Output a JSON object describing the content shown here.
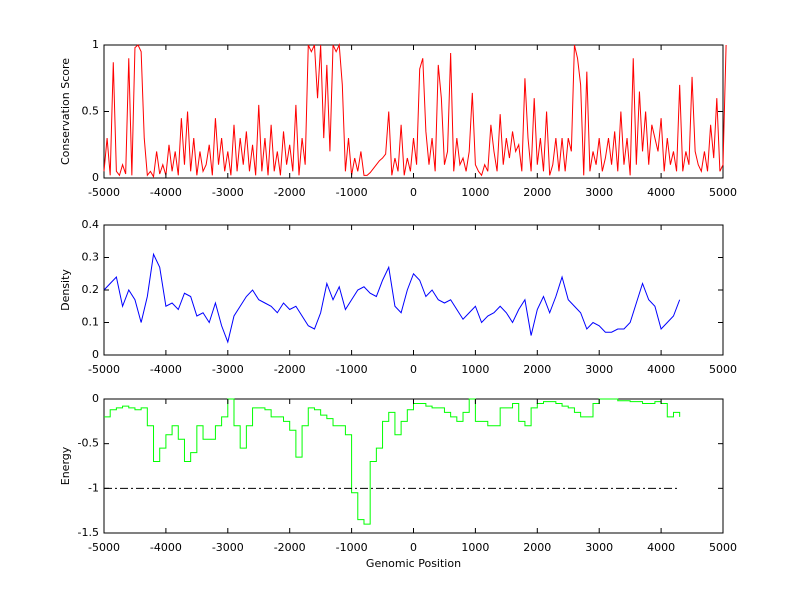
{
  "chart_data": [
    {
      "type": "line",
      "ylabel": "Conservation Score",
      "xlim": [
        -5000,
        5000
      ],
      "ylim": [
        0,
        1
      ],
      "xticks": [
        -5000,
        -4000,
        -3000,
        -2000,
        -1000,
        0,
        1000,
        2000,
        3000,
        4000,
        5000
      ],
      "yticks": [
        0,
        0.5,
        1
      ],
      "ytick_labels": [
        "0",
        "0.5",
        "1"
      ],
      "color": "#ff0000",
      "grid": false,
      "x_start": -5000,
      "x_step": 50,
      "values": [
        0.05,
        0.3,
        0.02,
        0.87,
        0.05,
        0.02,
        0.1,
        0.03,
        0.9,
        0.02,
        0.98,
        1,
        0.95,
        0.3,
        0.02,
        0.05,
        0.01,
        0.2,
        0.03,
        0.1,
        0.02,
        0.25,
        0.05,
        0.2,
        0.02,
        0.45,
        0.1,
        0.5,
        0.05,
        0.3,
        0.02,
        0.2,
        0.05,
        0.1,
        0.25,
        0.02,
        0.45,
        0.1,
        0.3,
        0.05,
        0.2,
        0.02,
        0.4,
        0.05,
        0.3,
        0.1,
        0.35,
        0.05,
        0.25,
        0.02,
        0.55,
        0.05,
        0.3,
        0.02,
        0.4,
        0.05,
        0.2,
        0.02,
        0.35,
        0.1,
        0.25,
        0.05,
        0.55,
        0.02,
        0.3,
        0.1,
        1,
        0.95,
        1,
        0.6,
        1,
        0.3,
        0.85,
        0.2,
        1,
        0.95,
        1,
        0.7,
        0.05,
        0.3,
        0.02,
        0.15,
        0.05,
        0.2,
        0.02,
        0.02,
        0.04,
        0.07,
        0.1,
        0.13,
        0.15,
        0.18,
        0.5,
        0.02,
        0.15,
        0.05,
        0.4,
        0.02,
        0.15,
        0.05,
        0.3,
        0.1,
        0.82,
        0.9,
        0.35,
        0.1,
        0.3,
        0.05,
        0.85,
        0.6,
        0.1,
        0.2,
        0.94,
        0.05,
        0.3,
        0.1,
        0.15,
        0.05,
        0.2,
        0.64,
        0.1,
        0.05,
        0.02,
        0.1,
        0.05,
        0.4,
        0.2,
        0.05,
        0.48,
        0.1,
        0.3,
        0.15,
        0.35,
        0.2,
        0.25,
        0.05,
        0.75,
        0.3,
        0.05,
        0.6,
        0.1,
        0.3,
        0.05,
        0.5,
        0.02,
        0.1,
        0.3,
        0.05,
        0.3,
        0.05,
        0.3,
        0.2,
        1,
        0.9,
        0.7,
        0.02,
        0.8,
        0.05,
        0.2,
        0.1,
        0.3,
        0.05,
        0.15,
        0.3,
        0.1,
        0.35,
        0.05,
        0.5,
        0.1,
        0.3,
        0.02,
        0.9,
        0.1,
        0.65,
        0.2,
        0.5,
        0.1,
        0.4,
        0.3,
        0.2,
        0.45,
        0.05,
        0.3,
        0.1,
        0.2,
        0.05,
        0.7,
        0.05,
        0.2,
        0.1,
        0.76,
        0.2,
        0.1,
        0.05,
        0.2,
        0.05,
        0.4,
        0.15,
        0.6,
        0.05,
        0.1,
        1
      ]
    },
    {
      "type": "line",
      "ylabel": "Density",
      "xlim": [
        -5000,
        5000
      ],
      "ylim": [
        0,
        0.4
      ],
      "xticks": [
        -5000,
        -4000,
        -3000,
        -2000,
        -1000,
        0,
        1000,
        2000,
        3000,
        4000,
        5000
      ],
      "yticks": [
        0,
        0.1,
        0.2,
        0.3,
        0.4
      ],
      "ytick_labels": [
        "0",
        "0.1",
        "0.2",
        "0.3",
        "0.4"
      ],
      "color": "#0000ff",
      "grid": false,
      "x_start": -5000,
      "x_step": 100,
      "values": [
        0.2,
        0.22,
        0.24,
        0.15,
        0.2,
        0.17,
        0.1,
        0.18,
        0.31,
        0.27,
        0.15,
        0.16,
        0.14,
        0.19,
        0.18,
        0.12,
        0.13,
        0.1,
        0.16,
        0.09,
        0.04,
        0.12,
        0.15,
        0.18,
        0.2,
        0.17,
        0.16,
        0.15,
        0.13,
        0.16,
        0.14,
        0.15,
        0.12,
        0.09,
        0.08,
        0.13,
        0.22,
        0.17,
        0.21,
        0.14,
        0.17,
        0.2,
        0.21,
        0.19,
        0.18,
        0.23,
        0.27,
        0.15,
        0.13,
        0.2,
        0.25,
        0.23,
        0.18,
        0.2,
        0.17,
        0.16,
        0.17,
        0.14,
        0.11,
        0.13,
        0.15,
        0.1,
        0.12,
        0.13,
        0.15,
        0.13,
        0.1,
        0.14,
        0.17,
        0.06,
        0.14,
        0.18,
        0.13,
        0.18,
        0.24,
        0.17,
        0.15,
        0.13,
        0.08,
        0.1,
        0.09,
        0.07,
        0.07,
        0.08,
        0.08,
        0.1,
        0.16,
        0.22,
        0.17,
        0.15,
        0.08,
        0.1,
        0.12,
        0.17
      ]
    },
    {
      "type": "line",
      "ylabel": "Energy",
      "xlabel": "Genomic Position",
      "xlim": [
        -5000,
        5000
      ],
      "ylim": [
        -1.5,
        0
      ],
      "xticks": [
        -5000,
        -4000,
        -3000,
        -2000,
        -1000,
        0,
        1000,
        2000,
        3000,
        4000,
        5000
      ],
      "yticks": [
        -1.5,
        -1,
        -0.5,
        0
      ],
      "ytick_labels": [
        "-1.5",
        "-1",
        "-0.5",
        "0"
      ],
      "color": "#00ff00",
      "grid": false,
      "x_start": -5000,
      "x_step": 100,
      "values": [
        -0.2,
        -0.12,
        -0.1,
        -0.08,
        -0.1,
        -0.12,
        -0.1,
        -0.3,
        -0.7,
        -0.55,
        -0.4,
        -0.3,
        -0.45,
        -0.7,
        -0.6,
        -0.3,
        -0.45,
        -0.45,
        -0.3,
        -0.2,
        0,
        -0.3,
        -0.55,
        -0.3,
        -0.1,
        -0.1,
        -0.12,
        -0.2,
        -0.2,
        -0.25,
        -0.35,
        -0.65,
        -0.3,
        -0.1,
        -0.12,
        -0.18,
        -0.22,
        -0.3,
        -0.3,
        -0.4,
        -1.05,
        -1.35,
        -1.4,
        -0.7,
        -0.55,
        -0.25,
        -0.15,
        -0.4,
        -0.25,
        -0.12,
        -0.05,
        -0.05,
        -0.08,
        -0.1,
        -0.1,
        -0.15,
        -0.2,
        -0.25,
        -0.15,
        0,
        -0.25,
        -0.25,
        -0.3,
        -0.3,
        -0.1,
        -0.1,
        -0.05,
        -0.25,
        -0.3,
        -0.1,
        -0.05,
        -0.03,
        -0.03,
        -0.05,
        -0.08,
        -0.1,
        -0.15,
        -0.2,
        -0.2,
        -0.05,
        0,
        0,
        0,
        -0.02,
        -0.02,
        -0.03,
        -0.03,
        -0.05,
        -0.05,
        -0.03,
        -0.05,
        -0.2,
        -0.15,
        -0.2
      ],
      "threshold": {
        "y": -1,
        "x_range": [
          -5000,
          4300
        ],
        "style": "dash-dot",
        "color": "#000000"
      }
    }
  ]
}
